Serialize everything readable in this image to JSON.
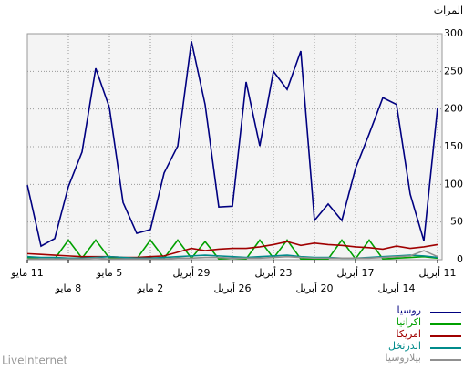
{
  "chart_data": {
    "type": "line",
    "y_label": "المرات",
    "brand": "LiveInternet",
    "categories": [
      "11 مايو",
      null,
      null,
      "8 مايو",
      null,
      null,
      "5 مايو",
      null,
      null,
      "2 مايو",
      null,
      null,
      "29 أبريل",
      null,
      null,
      "26 أبريل",
      null,
      null,
      "23 أبريل",
      null,
      null,
      "20 أبريل",
      null,
      null,
      "17 أبريل",
      null,
      null,
      "14 أبريل",
      null,
      null,
      "11 أبريل"
    ],
    "ylim": [
      0,
      300
    ],
    "yticks": [
      0,
      50,
      100,
      150,
      200,
      250,
      300
    ],
    "grid": true,
    "series": [
      {
        "name": "روسيا",
        "color": "#000080",
        "values": [
          99,
          18,
          28,
          97,
          143,
          254,
          202,
          76,
          35,
          40,
          115,
          151,
          290,
          206,
          70,
          71,
          236,
          151,
          250,
          226,
          277,
          52,
          74,
          52,
          121,
          167,
          215,
          206,
          87,
          25,
          202
        ]
      },
      {
        "name": "اكرانيا",
        "color": "#00a000",
        "values": [
          3,
          1,
          1,
          26,
          2,
          26,
          2,
          2,
          1,
          26,
          2,
          26,
          2,
          24,
          1,
          2,
          1,
          26,
          2,
          26,
          1,
          1,
          1,
          26,
          1,
          26,
          1,
          2,
          3,
          4,
          2
        ]
      },
      {
        "name": "امريكا",
        "color": "#a00000",
        "values": [
          8,
          7,
          6,
          5,
          4,
          4,
          4,
          3,
          3,
          4,
          5,
          10,
          15,
          12,
          14,
          15,
          15,
          17,
          20,
          24,
          19,
          22,
          20,
          19,
          17,
          16,
          14,
          18,
          15,
          17,
          20
        ]
      },
      {
        "name": "الدرنخل",
        "color": "#008b8b",
        "values": [
          4,
          3,
          3,
          2,
          2,
          3,
          4,
          3,
          2,
          2,
          3,
          4,
          5,
          6,
          5,
          4,
          3,
          4,
          5,
          6,
          4,
          3,
          3,
          2,
          2,
          3,
          4,
          5,
          6,
          5,
          3
        ]
      },
      {
        "name": "بيلاروسيا",
        "color": "#909090",
        "values": [
          1,
          1,
          1,
          1,
          1,
          2,
          1,
          1,
          1,
          1,
          1,
          2,
          2,
          3,
          3,
          2,
          2,
          2,
          3,
          4,
          3,
          2,
          2,
          2,
          2,
          2,
          3,
          4,
          5,
          12,
          4
        ]
      }
    ]
  }
}
